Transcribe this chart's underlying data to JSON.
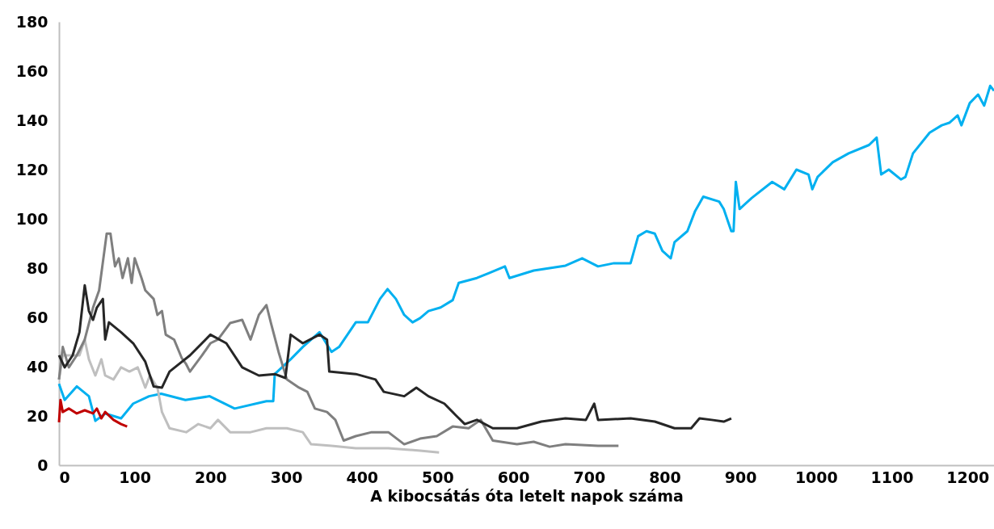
{
  "chart_data": {
    "type": "line",
    "xlabel": "A kibocsátás óta letelt napok száma",
    "xlim": [
      0,
      1235
    ],
    "xticks": [
      0,
      100,
      200,
      300,
      400,
      500,
      600,
      700,
      800,
      900,
      1000,
      1100,
      1200
    ],
    "ylim": [
      0,
      180
    ],
    "yticks": [
      0,
      20,
      40,
      60,
      80,
      100,
      120,
      140,
      160,
      180
    ],
    "grid": false,
    "legend": false,
    "marker": "none",
    "line_style": "solid",
    "series": [
      {
        "color": "#00b0f0",
        "x": [
          0,
          7.5,
          23.5,
          39.5,
          48,
          61,
          82,
          98,
          119,
          135,
          167,
          199,
          232,
          274,
          283,
          285,
          306,
          322,
          344,
          360,
          370,
          392,
          408,
          424,
          434,
          445,
          456,
          467,
          477,
          488,
          504,
          520,
          528,
          552,
          568,
          589,
          595,
          627,
          669,
          691,
          712,
          733,
          755,
          765,
          776,
          787,
          797,
          808,
          813,
          830,
          840,
          851,
          872,
          878,
          888,
          891,
          894,
          899,
          915,
          942,
          958,
          974,
          990,
          995,
          1002,
          1022,
          1043,
          1070,
          1080,
          1086,
          1096,
          1112,
          1118,
          1128,
          1150,
          1166,
          1176,
          1187,
          1192,
          1203,
          1214,
          1222,
          1230,
          1235
        ],
        "values": [
          33,
          26.5,
          32,
          28,
          18,
          21,
          19,
          25,
          28,
          29,
          26.5,
          28,
          23,
          26,
          26,
          37,
          43,
          48,
          54,
          46,
          48,
          58,
          58,
          67.5,
          71.5,
          67.5,
          61,
          58,
          59.7,
          62.6,
          64,
          67,
          74,
          76,
          78,
          80.7,
          76,
          79,
          81,
          84,
          80.7,
          82,
          82,
          93,
          95,
          94,
          87,
          84,
          90.5,
          95,
          103,
          109,
          107,
          104,
          95,
          95,
          115,
          104,
          108.5,
          115,
          112,
          120,
          118,
          112,
          117,
          123,
          126.6,
          130,
          133,
          118,
          120,
          116,
          117,
          126.6,
          135,
          138,
          139,
          142,
          138,
          147,
          150.5,
          146,
          154,
          152
        ]
      },
      {
        "color": "#bfbfbf",
        "x": [
          0,
          5,
          18,
          27,
          34,
          39.5,
          48,
          56,
          61,
          72,
          82,
          93,
          104,
          114,
          120,
          130,
          136,
          146,
          168,
          184,
          200,
          210,
          226,
          253,
          274,
          301,
          322,
          333,
          360,
          392,
          435,
          477,
          502
        ],
        "values": [
          34.8,
          44.6,
          44.6,
          44.6,
          51,
          43,
          36.4,
          43,
          36.4,
          34.8,
          39.7,
          38,
          39.7,
          31.5,
          36.4,
          31.5,
          21.6,
          15,
          13.4,
          16.7,
          15,
          18.4,
          13.4,
          13.4,
          15,
          15,
          13.4,
          8.5,
          7.9,
          6.9,
          6.9,
          5.9,
          5.2
        ]
      },
      {
        "color": "#7f7f7f",
        "x": [
          0,
          5,
          13,
          23.5,
          34,
          45,
          53,
          63,
          68,
          74,
          79,
          84,
          91,
          96,
          100,
          109,
          114,
          125,
          130,
          136,
          141,
          152,
          162,
          168,
          173,
          189,
          200,
          210,
          226,
          242,
          253,
          264,
          274,
          280,
          290,
          301,
          317,
          328,
          338,
          354,
          365,
          376,
          392,
          413,
          435,
          456,
          477,
          499,
          520,
          541,
          557,
          573,
          605,
          627,
          648,
          669,
          712,
          739
        ],
        "values": [
          34.8,
          48,
          39.7,
          44.6,
          51,
          64,
          71,
          94,
          94,
          80.7,
          84,
          76,
          84,
          74,
          84,
          76,
          71,
          67.5,
          61,
          62.6,
          53,
          51,
          43.6,
          41,
          38,
          44.6,
          49.5,
          51,
          57.7,
          59,
          51,
          61,
          65,
          57.7,
          46,
          34.8,
          31.5,
          29.8,
          23,
          21.6,
          18.4,
          10,
          11.8,
          13.4,
          13.4,
          8.5,
          10.8,
          11.8,
          15.7,
          15,
          18.4,
          10,
          8.5,
          9.5,
          7.5,
          8.5,
          7.9,
          7.9
        ]
      },
      {
        "color": "#262626",
        "x": [
          0,
          7.5,
          18,
          27,
          34,
          39.5,
          45,
          50,
          58,
          61,
          66,
          82,
          98,
          114,
          125,
          136,
          146,
          157,
          173,
          200,
          221,
          242,
          264,
          285,
          299,
          306,
          322,
          344,
          354,
          357,
          392,
          418,
          429,
          456,
          472,
          488,
          509,
          525,
          536,
          552,
          573,
          605,
          637,
          669,
          696,
          707,
          712,
          755,
          787,
          813,
          835,
          846,
          862,
          878,
          888
        ],
        "values": [
          44.6,
          39.7,
          44.6,
          54,
          73,
          62.6,
          59,
          64,
          67.5,
          51,
          58,
          54,
          49.5,
          42,
          32,
          31.5,
          38,
          40.7,
          44.6,
          53,
          49.5,
          39.7,
          36.4,
          37,
          35.4,
          53,
          49.5,
          53,
          51,
          38,
          37,
          34.8,
          29.8,
          28,
          31.5,
          28,
          25,
          20,
          16.7,
          18.4,
          15,
          15,
          17.7,
          19,
          18.4,
          25,
          18.4,
          19,
          17.7,
          15,
          15,
          19,
          18.4,
          17.7,
          19
        ]
      },
      {
        "color": "#c00000",
        "x": [
          0,
          2,
          5,
          13,
          23.5,
          34,
          45,
          50,
          56,
          61,
          72,
          82,
          90
        ],
        "values": [
          17.4,
          26.5,
          21.6,
          23,
          21,
          22.3,
          21,
          23,
          19,
          21.6,
          18.4,
          16.7,
          15.7
        ]
      }
    ]
  }
}
